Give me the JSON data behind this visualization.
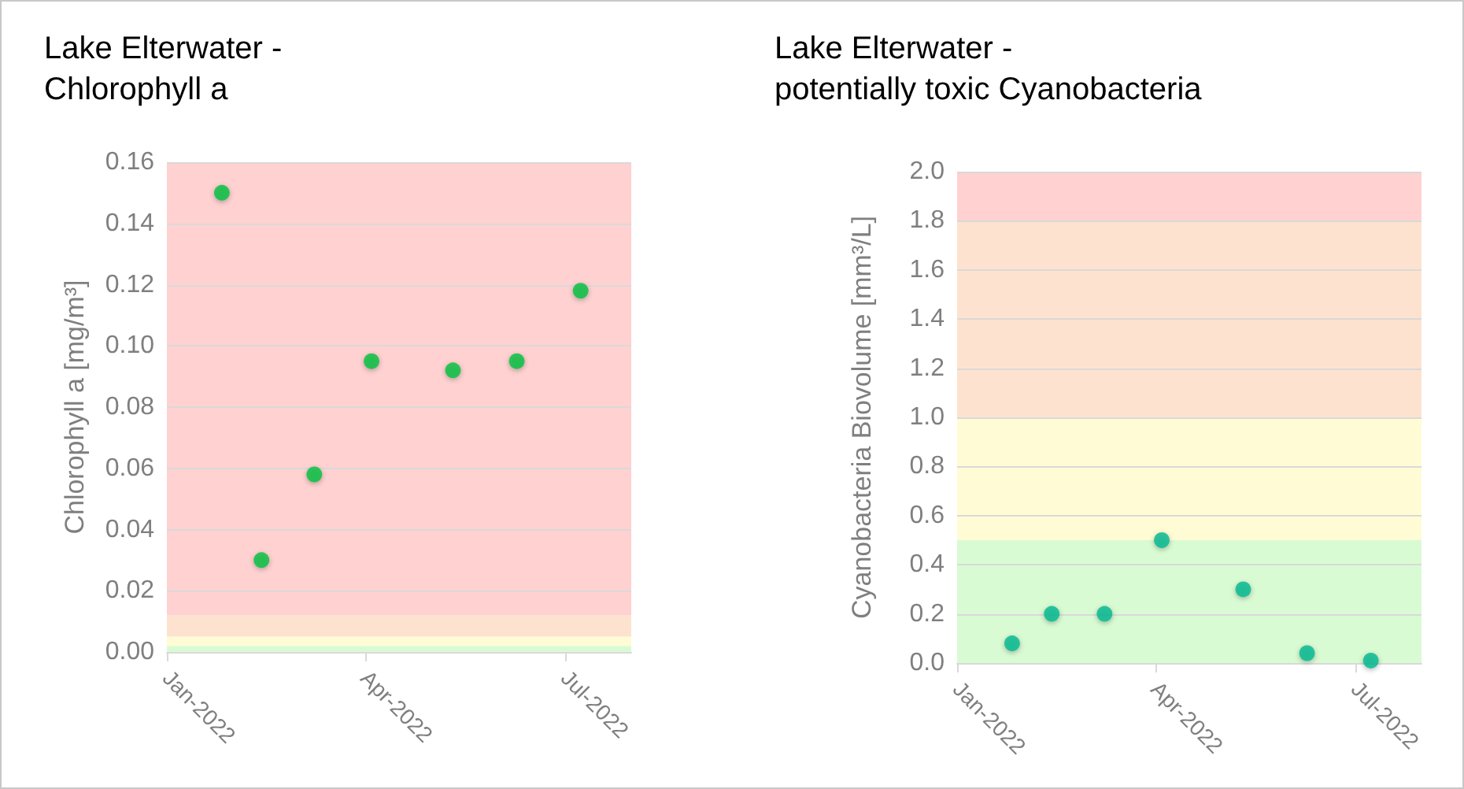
{
  "chart_data": [
    {
      "type": "scatter",
      "title": "Lake Elterwater -\nChlorophyll a",
      "ylabel": "Chlorophyll a [mg/m³]",
      "x": [
        "2022-01-26",
        "2022-02-13",
        "2022-03-09",
        "2022-04-04",
        "2022-05-11",
        "2022-06-09",
        "2022-07-08"
      ],
      "series": [
        {
          "color": "#00c040",
          "values": [
            0.15,
            0.03,
            0.058,
            0.095,
            0.092,
            0.095,
            0.118
          ]
        }
      ],
      "xlim": [
        "2022-01-01",
        "2022-07-31"
      ],
      "xticks": [
        {
          "value": "2022-01-01",
          "label": "Jan-2022"
        },
        {
          "value": "2022-04-01",
          "label": "Apr-2022"
        },
        {
          "value": "2022-07-01",
          "label": "Jul-2022"
        }
      ],
      "ylim": [
        0,
        0.16
      ],
      "yticks": [
        {
          "value": 0,
          "label": "0.00"
        },
        {
          "value": 0.02,
          "label": "0.02"
        },
        {
          "value": 0.04,
          "label": "0.04"
        },
        {
          "value": 0.06,
          "label": "0.06"
        },
        {
          "value": 0.08,
          "label": "0.08"
        },
        {
          "value": 0.1,
          "label": "0.10"
        },
        {
          "value": 0.12,
          "label": "0.12"
        },
        {
          "value": 0.14,
          "label": "0.14"
        },
        {
          "value": 0.16,
          "label": "0.16"
        }
      ],
      "bands": [
        {
          "axis": "y",
          "from": 0,
          "to": 0.002,
          "color": "#d9fbd3"
        },
        {
          "axis": "y",
          "from": 0.002,
          "to": 0.005,
          "color": "#fffcd5"
        },
        {
          "axis": "y",
          "from": 0.005,
          "to": 0.012,
          "color": "#fde3cf"
        },
        {
          "axis": "y",
          "from": 0.012,
          "to": 0.16,
          "color": "#ffd1d1"
        }
      ],
      "grid": "y",
      "marker": "circle"
    },
    {
      "type": "scatter",
      "title": "Lake Elterwater -\npotentially toxic Cyanobacteria",
      "ylabel": "Cyanobacteria Biovolume [mm³/L]",
      "x": [
        "2022-01-26",
        "2022-02-13",
        "2022-03-09",
        "2022-04-04",
        "2022-05-11",
        "2022-06-09",
        "2022-07-08"
      ],
      "series": [
        {
          "color": "#00b890",
          "values": [
            0.08,
            0.2,
            0.2,
            0.5,
            0.3,
            0.04,
            0.01
          ]
        }
      ],
      "xlim": [
        "2022-01-01",
        "2022-07-31"
      ],
      "xticks": [
        {
          "value": "2022-01-01",
          "label": "Jan-2022"
        },
        {
          "value": "2022-04-01",
          "label": "Apr-2022"
        },
        {
          "value": "2022-07-01",
          "label": "Jul-2022"
        }
      ],
      "ylim": [
        0,
        2.0
      ],
      "yticks": [
        {
          "value": 0,
          "label": "0.0"
        },
        {
          "value": 0.2,
          "label": "0.2"
        },
        {
          "value": 0.4,
          "label": "0.4"
        },
        {
          "value": 0.6,
          "label": "0.6"
        },
        {
          "value": 0.8,
          "label": "0.8"
        },
        {
          "value": 1,
          "label": "1.0"
        },
        {
          "value": 1.2,
          "label": "1.2"
        },
        {
          "value": 1.4,
          "label": "1.4"
        },
        {
          "value": 1.6,
          "label": "1.6"
        },
        {
          "value": 1.8,
          "label": "1.8"
        },
        {
          "value": 2,
          "label": "2.0"
        }
      ],
      "bands": [
        {
          "axis": "y",
          "from": 0,
          "to": 0.5,
          "color": "#d9fbd3"
        },
        {
          "axis": "y",
          "from": 0.5,
          "to": 1.0,
          "color": "#fffcd5"
        },
        {
          "axis": "y",
          "from": 1.0,
          "to": 1.8,
          "color": "#fde3cf"
        },
        {
          "axis": "y",
          "from": 1.8,
          "to": 2.0,
          "color": "#ffd1d1"
        }
      ],
      "grid": "y",
      "marker": "circle"
    }
  ]
}
